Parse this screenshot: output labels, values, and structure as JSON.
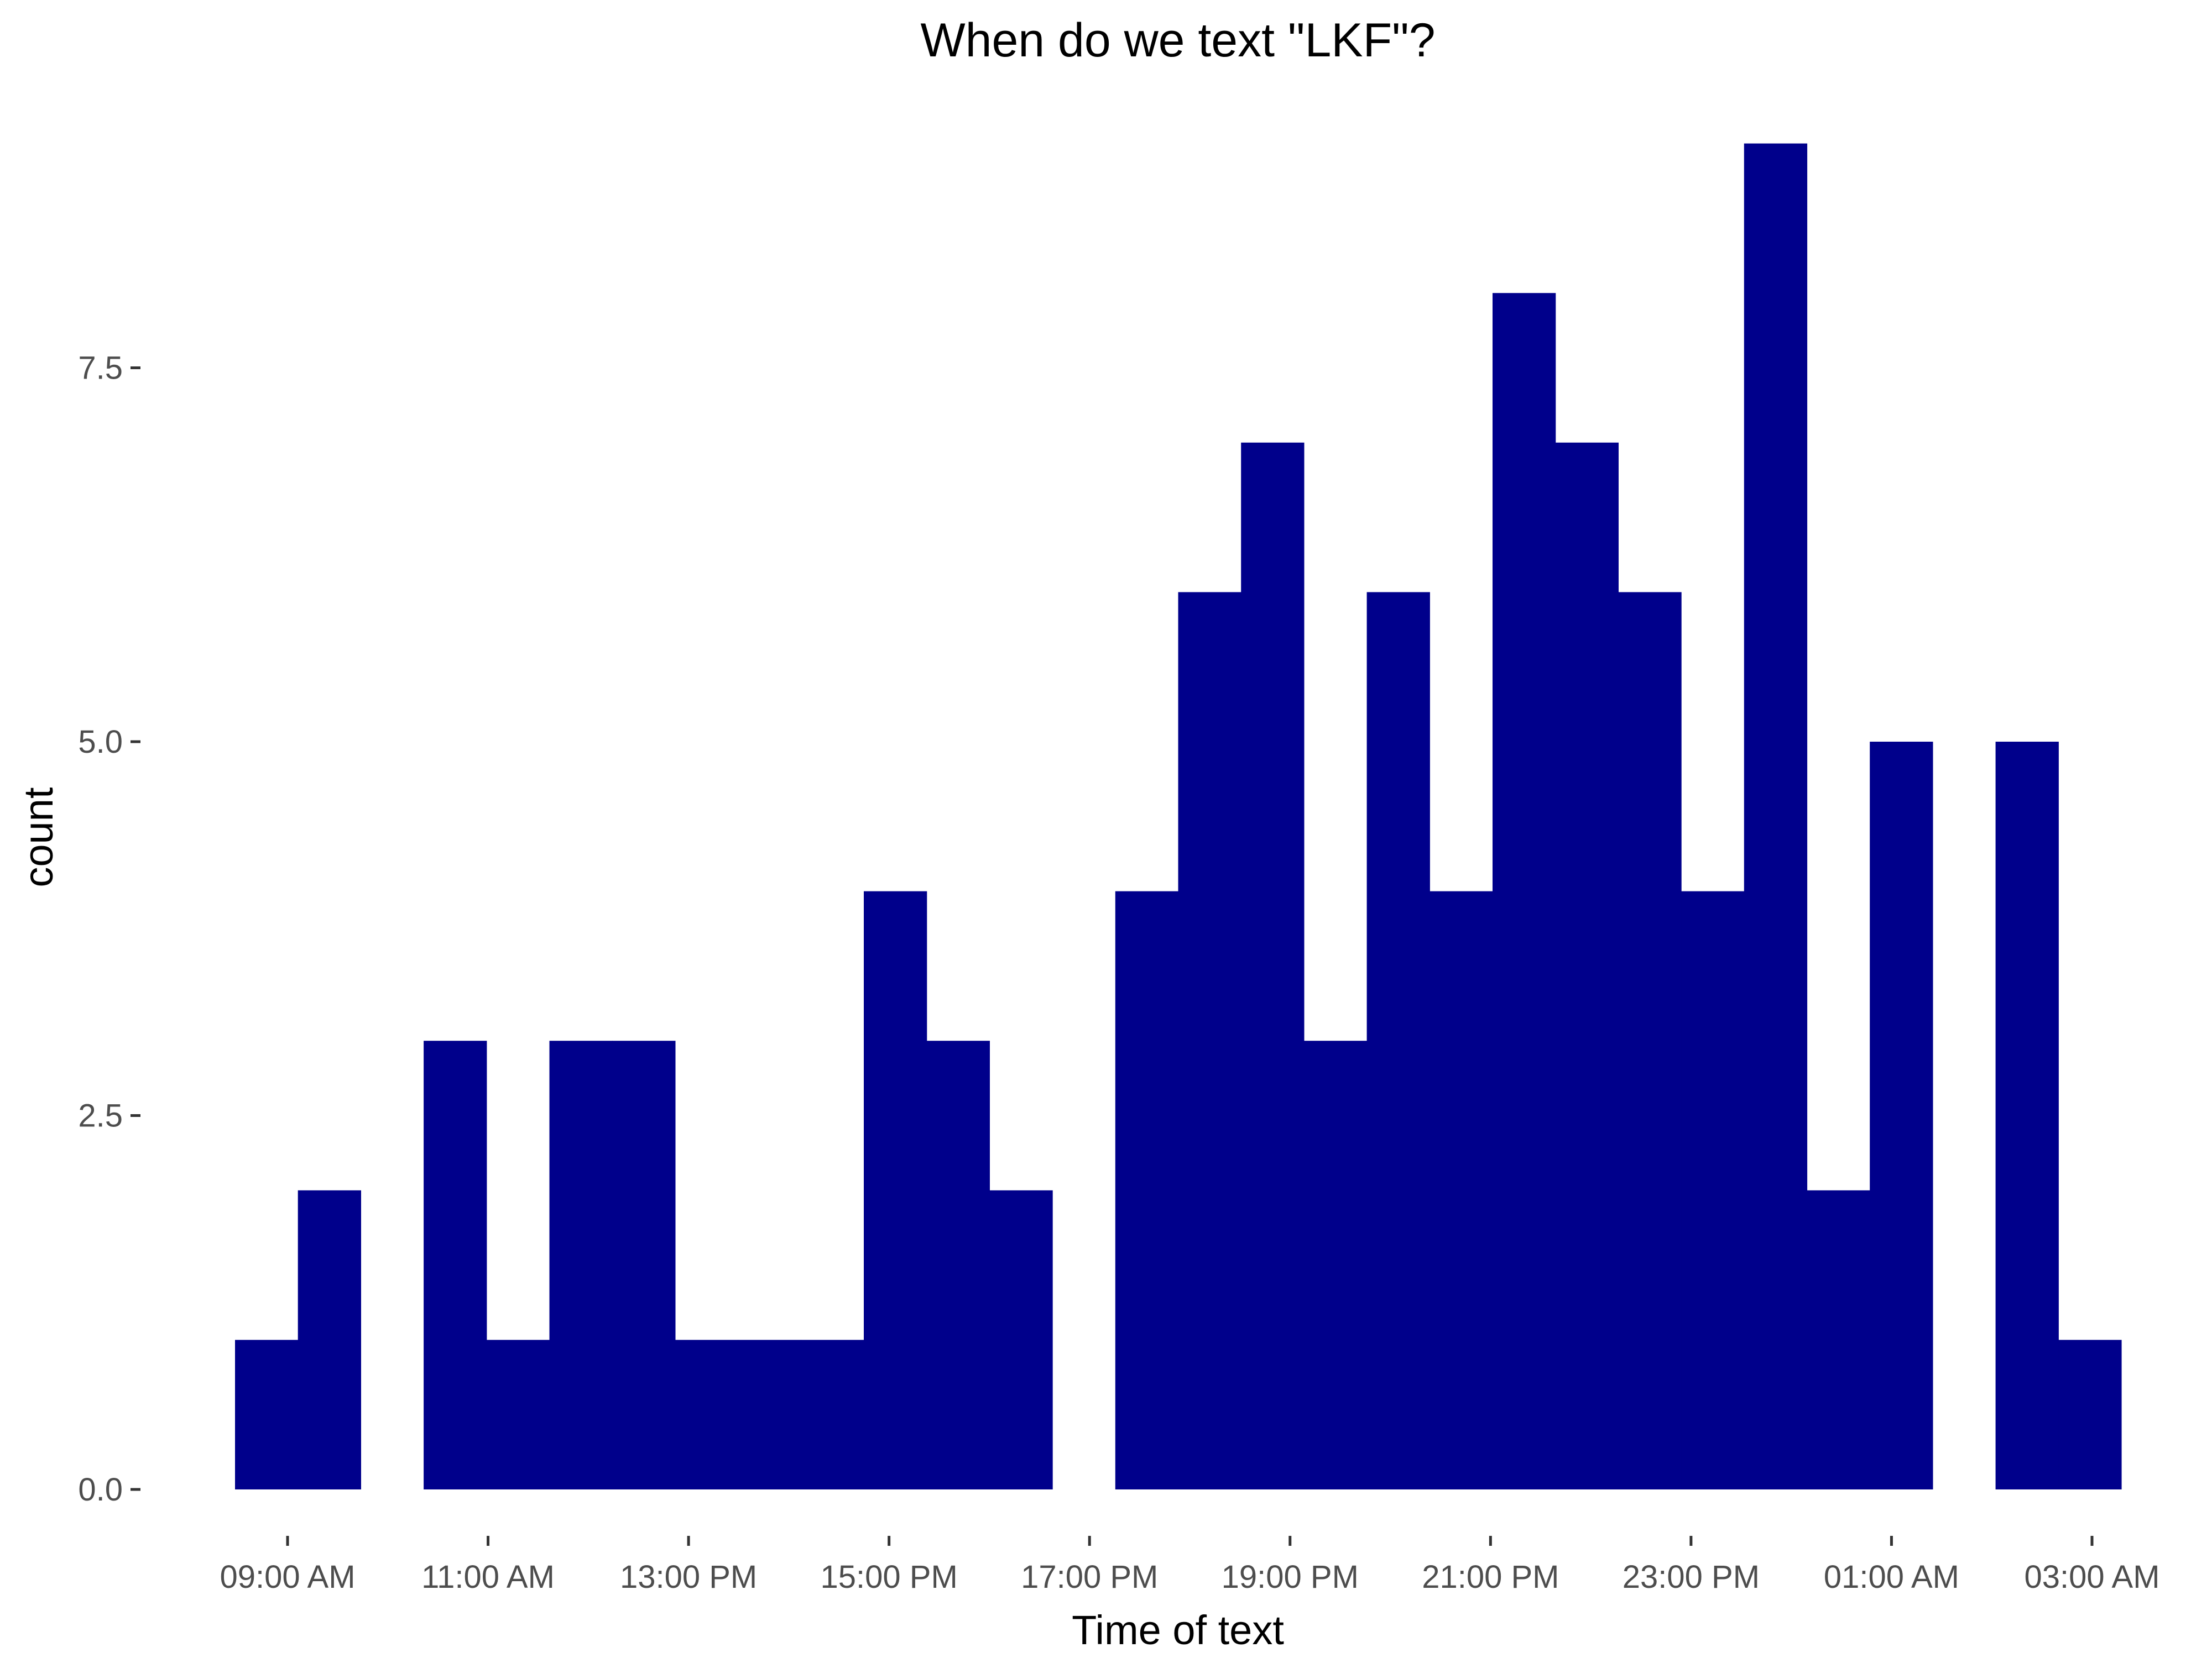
{
  "chart_data": {
    "type": "bar",
    "title": "When do we text \"LKF\"?",
    "xlabel": "Time of text",
    "ylabel": "count",
    "ylim": [
      -0.45,
      9.45
    ],
    "grid": false,
    "legend": "none",
    "bar_color": "#00008b",
    "x_ticks": [
      "09:00 AM",
      "11:00 AM",
      "13:00 PM",
      "15:00 PM",
      "17:00 PM",
      "19:00 PM",
      "21:00 PM",
      "23:00 PM",
      "01:00 AM",
      "03:00 AM"
    ],
    "y_ticks": [
      "0.0",
      "2.5",
      "5.0",
      "7.5"
    ],
    "y_tick_values": [
      0,
      2.5,
      5.0,
      7.5
    ],
    "values": [
      1,
      2,
      0,
      3,
      1,
      3,
      3,
      1,
      1,
      1,
      4,
      3,
      2,
      0,
      4,
      6,
      7,
      3,
      6,
      4,
      8,
      7,
      6,
      4,
      9,
      2,
      5,
      0,
      5,
      1
    ]
  }
}
